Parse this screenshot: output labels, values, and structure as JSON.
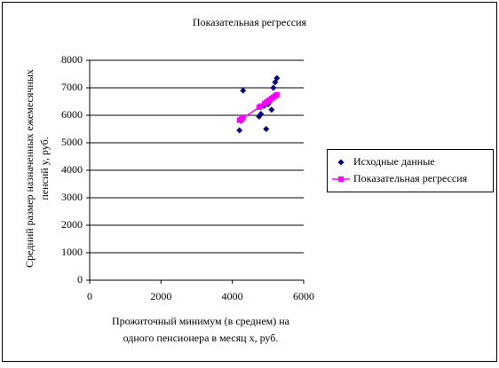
{
  "chart_data": {
    "type": "scatter",
    "title": "Показательная регрессия",
    "xlabel": [
      "Прожиточный минимум (в среднем) на",
      "одного пенсионера в месяц x, руб."
    ],
    "ylabel": [
      "Средний размер назначенных ежемесячных",
      "пенсий y, руб."
    ],
    "x": [
      4200,
      4250,
      4300,
      4750,
      4800,
      4900,
      4950,
      5000,
      5050,
      5100,
      5150,
      5200,
      5250
    ],
    "series": [
      {
        "name": "Исходные данные",
        "color": "#000080",
        "marker": "diamond",
        "line": false,
        "values": [
          5450,
          5800,
          6900,
          5950,
          6050,
          6350,
          5500,
          6400,
          6500,
          6200,
          7000,
          7200,
          7350
        ]
      },
      {
        "name": "Показательная регрессия",
        "color": "#ff00ff",
        "marker": "square",
        "line": true,
        "values": [
          5821,
          5862,
          5903,
          6290,
          6335,
          6425,
          6470,
          6516,
          6562,
          6609,
          6656,
          6703,
          6750
        ]
      }
    ],
    "xlim": [
      0,
      6000
    ],
    "xticks": [
      0,
      2000,
      4000,
      6000
    ],
    "ylim": [
      0,
      8000
    ],
    "yticks": [
      0,
      1000,
      2000,
      3000,
      4000,
      5000,
      6000,
      7000,
      8000
    ],
    "grid": true,
    "legend": "right"
  }
}
